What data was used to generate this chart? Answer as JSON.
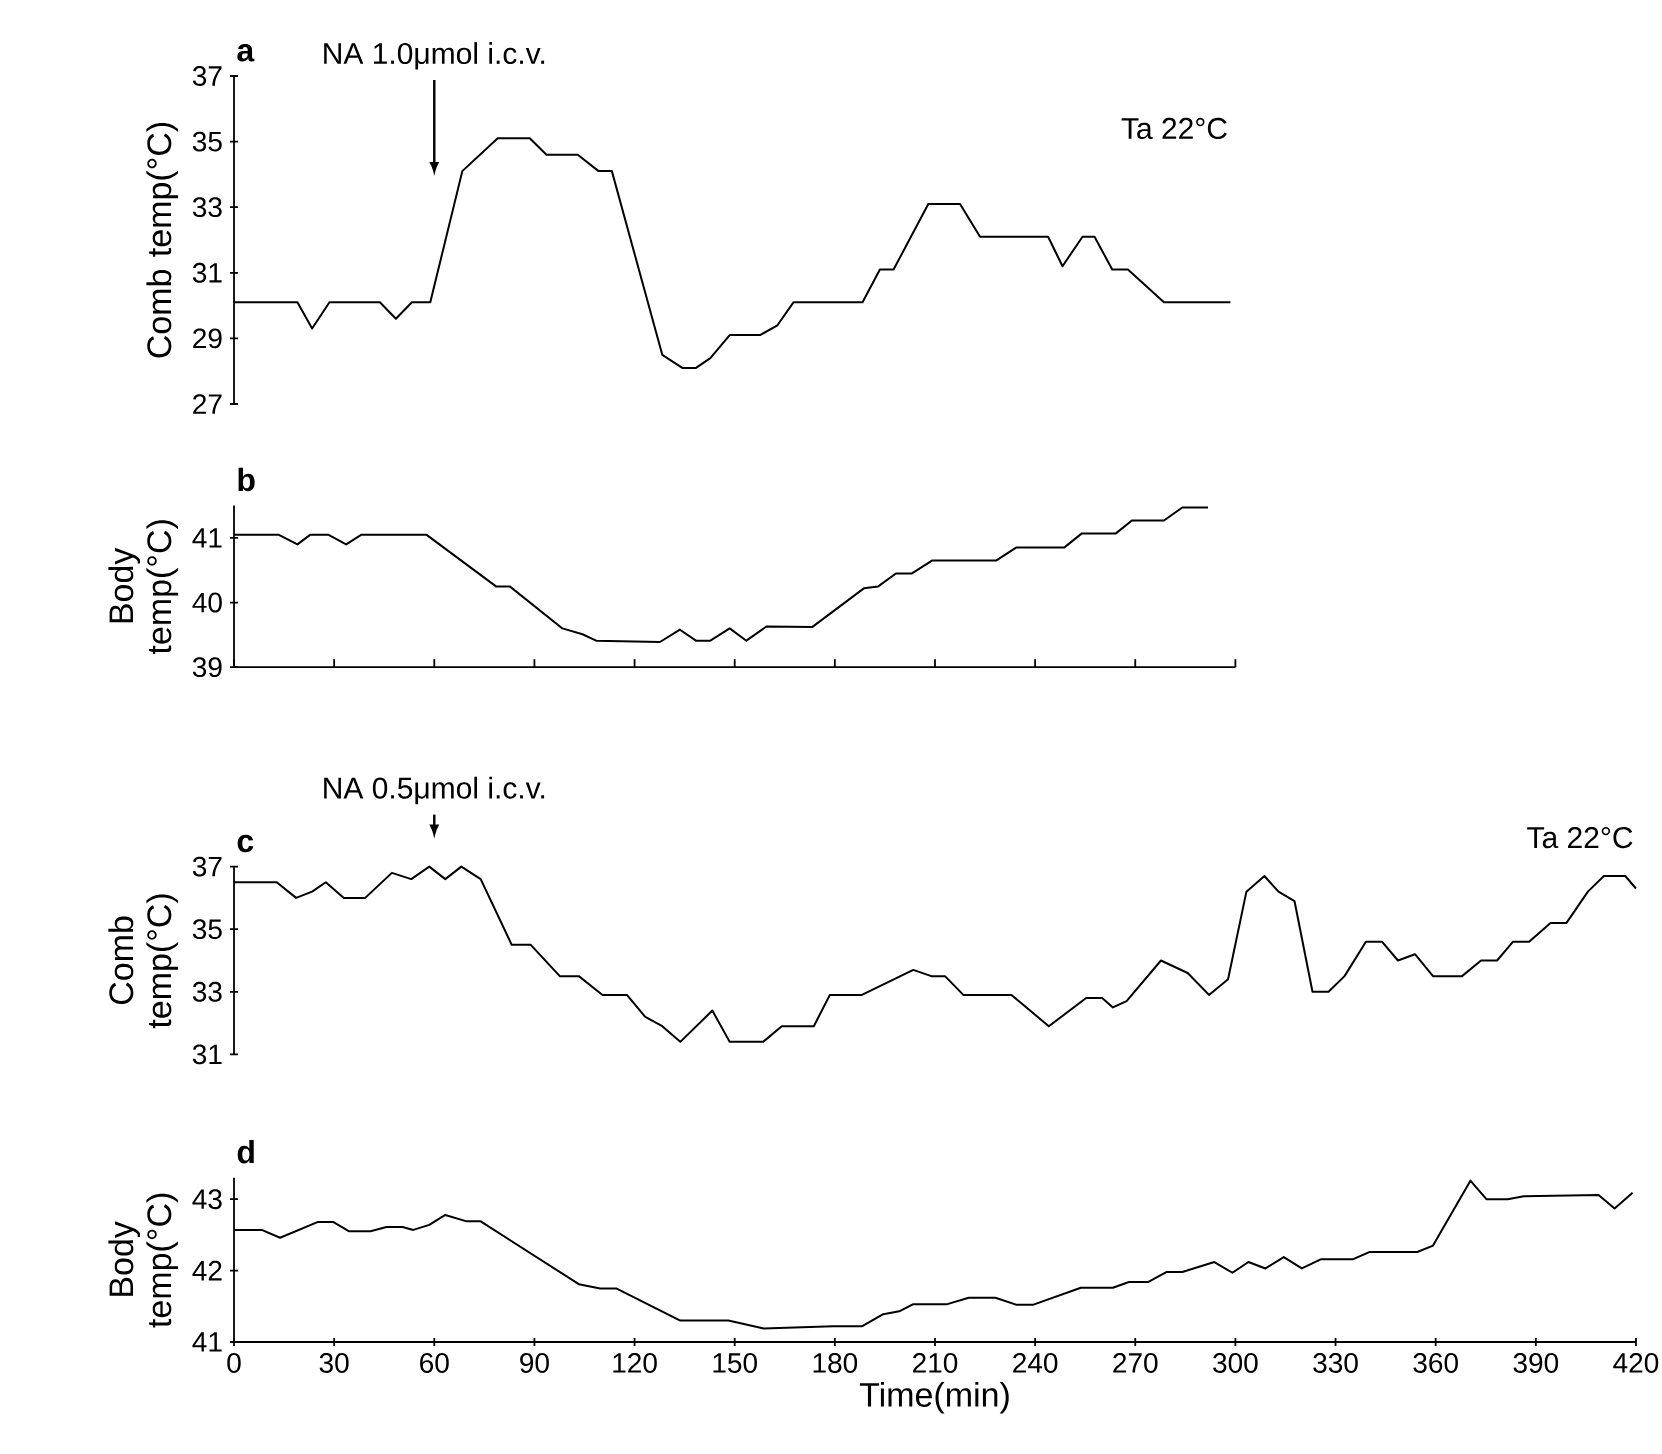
{
  "chart_data": [
    {
      "type": "line",
      "title": "a",
      "ylabel": "Comb temp(°C)",
      "xlim": [
        0,
        420
      ],
      "ylim": [
        27,
        37
      ],
      "yticks": [
        27,
        29,
        31,
        33,
        35,
        37
      ],
      "tick_labels": "y",
      "annotations": [
        {
          "text": "NA 1.0μmol i.c.v.",
          "x": 60
        },
        "Ta 22°C"
      ],
      "x": [
        0,
        19,
        23.4,
        28.6,
        43.7,
        48.5,
        53.3,
        58.8,
        68.4,
        79,
        88.6,
        93.6,
        103,
        109.2,
        113.2,
        128.3,
        134.3,
        138.4,
        142.7,
        148.5,
        157.6,
        162.8,
        167.6,
        188.3,
        193.5,
        197.6,
        208,
        217.5,
        223.5,
        243.9,
        248.2,
        254.2,
        257.8,
        263.1,
        267.8,
        278.6,
        298.5
      ],
      "values": [
        30.1,
        30.1,
        29.3,
        30.1,
        30.1,
        29.6,
        30.1,
        30.1,
        34.1,
        35.1,
        35.1,
        34.6,
        34.6,
        34.1,
        34.1,
        28.5,
        28.1,
        28.1,
        28.4,
        29.1,
        29.1,
        29.4,
        30.1,
        30.1,
        31.1,
        31.1,
        33.1,
        33.1,
        32.1,
        32.1,
        31.2,
        32.1,
        32.1,
        31.1,
        31.1,
        30.1,
        30.1
      ]
    },
    {
      "type": "line",
      "title": "b",
      "ylabel": "Body temp(°C)",
      "xlim": [
        0,
        420
      ],
      "ylim": [
        39,
        41.5
      ],
      "yticks": [
        39,
        40,
        41
      ],
      "tick_labels": "y",
      "xticks": [
        {
          "value": 0,
          "label": null
        },
        {
          "value": 30,
          "label": null
        },
        {
          "value": 60,
          "label": null
        },
        {
          "value": 90,
          "label": null
        },
        {
          "value": 120,
          "label": null
        },
        {
          "value": 150,
          "label": null
        },
        {
          "value": 180,
          "label": null
        },
        {
          "value": 210,
          "label": null
        },
        {
          "value": 240,
          "label": null
        },
        {
          "value": 270,
          "label": null
        },
        {
          "value": 300,
          "label": null
        }
      ],
      "x": [
        0,
        13.3,
        19,
        22.9,
        28.2,
        33.6,
        38.2,
        57.6,
        78.5,
        82.6,
        98.4,
        104.4,
        108.5,
        127.6,
        133.6,
        138.4,
        142.7,
        148.5,
        153.5,
        159.5,
        173.2,
        188.7,
        193,
        198.3,
        203.1,
        209.1,
        228.3,
        234.3,
        248.7,
        254,
        264.2,
        269,
        278.6,
        284.1,
        291.8
      ],
      "values": [
        41.05,
        41.05,
        40.9,
        41.05,
        41.05,
        40.9,
        41.05,
        41.05,
        40.25,
        40.25,
        39.6,
        39.51,
        39.41,
        39.39,
        39.58,
        39.41,
        39.41,
        39.6,
        39.41,
        39.63,
        39.62,
        40.22,
        40.25,
        40.45,
        40.45,
        40.65,
        40.65,
        40.85,
        40.85,
        41.07,
        41.07,
        41.27,
        41.27,
        41.47,
        41.47
      ]
    },
    {
      "type": "line",
      "title": "c",
      "ylabel": "Comb temp(°C)",
      "xlim": [
        0,
        420
      ],
      "ylim": [
        31,
        37
      ],
      "yticks": [
        31,
        33,
        35,
        37
      ],
      "tick_labels": "y",
      "annotations": [
        {
          "text": "NA 0.5μmol i.c.v.",
          "x": 60
        },
        "Ta 22°C"
      ],
      "x": [
        0,
        12.8,
        18.6,
        23.4,
        27.5,
        32.9,
        39.3,
        47.3,
        53.1,
        58.5,
        63.3,
        68.1,
        73.9,
        83.2,
        88.9,
        97.6,
        103.3,
        110.4,
        117.7,
        123.2,
        128.3,
        133.7,
        143.3,
        148.5,
        158.5,
        164.1,
        173.7,
        178.5,
        188.1,
        203.5,
        208.9,
        213,
        218.5,
        232.9,
        244.1,
        255.3,
        260.1,
        263.3,
        267.4,
        277.7,
        285.7,
        292.1,
        297.8,
        303.3,
        308.7,
        312.9,
        317.7,
        323.1,
        327.9,
        332.7,
        339.1,
        343.9,
        348.7,
        353.8,
        359.2,
        367.9,
        373.6,
        378.4,
        383.2,
        388,
        394.4,
        399.2,
        405.6,
        410.4,
        416.8,
        420
      ],
      "values": [
        36.5,
        36.5,
        36.0,
        36.2,
        36.5,
        36.0,
        36.0,
        36.8,
        36.6,
        37.0,
        36.6,
        37.0,
        36.6,
        34.5,
        34.5,
        33.5,
        33.5,
        32.9,
        32.9,
        32.2,
        31.9,
        31.4,
        32.4,
        31.4,
        31.4,
        31.9,
        31.9,
        32.9,
        32.9,
        33.7,
        33.5,
        33.5,
        32.9,
        32.9,
        31.9,
        32.8,
        32.8,
        32.5,
        32.7,
        34.0,
        33.6,
        32.9,
        33.4,
        36.2,
        36.7,
        36.2,
        35.9,
        33.0,
        33.0,
        33.5,
        34.6,
        34.6,
        34.0,
        34.2,
        33.5,
        33.5,
        34.0,
        34.0,
        34.6,
        34.6,
        35.2,
        35.2,
        36.2,
        36.7,
        36.7,
        36.3
      ]
    },
    {
      "type": "line",
      "title": "d",
      "ylabel": "Body temp(°C)",
      "xlabel": "Time(min)",
      "xlim": [
        0,
        420
      ],
      "ylim": [
        41,
        43.3
      ],
      "yticks": [
        41,
        42,
        43
      ],
      "xticks": [
        0,
        30,
        60,
        90,
        120,
        150,
        180,
        210,
        240,
        270,
        300,
        330,
        360,
        390,
        420
      ],
      "x": [
        0,
        8.3,
        13.8,
        25,
        29.8,
        34.5,
        40.9,
        45.7,
        50.5,
        53.7,
        58.5,
        63.3,
        69.7,
        73.9,
        103.3,
        109.7,
        114.5,
        133.7,
        148.1,
        158.7,
        179.5,
        188.1,
        194.5,
        199.3,
        203.5,
        213.7,
        220.1,
        228.1,
        234.5,
        239.3,
        253.7,
        263.3,
        268.1,
        273.8,
        279.3,
        284.1,
        293.7,
        299.1,
        303.9,
        309,
        314.5,
        319.9,
        325.7,
        335.3,
        340.1,
        354.5,
        359.2,
        370.4,
        375.2,
        381.6,
        386.4,
        408.8,
        413.6,
        419
      ],
      "values": [
        42.57,
        42.57,
        42.46,
        42.68,
        42.68,
        42.55,
        42.55,
        42.61,
        42.61,
        42.57,
        42.64,
        42.78,
        42.69,
        42.69,
        41.81,
        41.75,
        41.75,
        41.3,
        41.3,
        41.19,
        41.22,
        41.22,
        41.39,
        41.43,
        41.53,
        41.53,
        41.62,
        41.62,
        41.52,
        41.52,
        41.76,
        41.76,
        41.84,
        41.84,
        41.98,
        41.98,
        42.12,
        41.97,
        42.12,
        42.03,
        42.19,
        42.03,
        42.16,
        42.16,
        42.26,
        42.26,
        42.35,
        43.26,
        43.0,
        43.0,
        43.04,
        43.06,
        42.87,
        43.09
      ]
    }
  ]
}
